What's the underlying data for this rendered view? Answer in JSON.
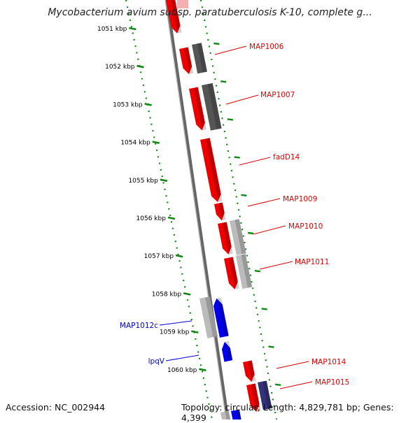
{
  "title": "Mycobacterium avium subsp. paratuberculosis K-10, complete g...",
  "footer": {
    "accession": "Accession: NC_002944",
    "summary": "Topology: circular; Length: 4,829,781 bp; Genes: 4,399"
  },
  "scale_unit": "kbp",
  "ticks": [
    {
      "label": "1051 kbp",
      "kbp": 1051
    },
    {
      "label": "1052 kbp",
      "kbp": 1052
    },
    {
      "label": "1053 kbp",
      "kbp": 1053
    },
    {
      "label": "1054 kbp",
      "kbp": 1054
    },
    {
      "label": "1055 kbp",
      "kbp": 1055
    },
    {
      "label": "1056 kbp",
      "kbp": 1056
    },
    {
      "label": "1057 kbp",
      "kbp": 1057
    },
    {
      "label": "1058 kbp",
      "kbp": 1058
    },
    {
      "label": "1059 kbp",
      "kbp": 1059
    },
    {
      "label": "1060 kbp",
      "kbp": 1060
    }
  ],
  "gene_labels": [
    {
      "text": "MAP1006",
      "strand": "forward",
      "color": "#dd0000"
    },
    {
      "text": "MAP1007",
      "strand": "forward",
      "color": "#dd0000"
    },
    {
      "text": "fadD14",
      "strand": "forward",
      "color": "#dd0000"
    },
    {
      "text": "MAP1009",
      "strand": "forward",
      "color": "#dd0000"
    },
    {
      "text": "MAP1010",
      "strand": "forward",
      "color": "#dd0000"
    },
    {
      "text": "MAP1011",
      "strand": "forward",
      "color": "#dd0000"
    },
    {
      "text": "MAP1012c",
      "strand": "reverse",
      "color": "#0000cc"
    },
    {
      "text": "lpqV",
      "strand": "reverse",
      "color": "#0000cc"
    },
    {
      "text": "MAP1014",
      "strand": "forward",
      "color": "#dd0000"
    },
    {
      "text": "MAP1015",
      "strand": "forward",
      "color": "#dd0000"
    }
  ],
  "colors": {
    "forward_gene": "#ee0000",
    "reverse_gene": "#0000ee",
    "cds_dark": "#555555",
    "cds_light": "#bbbbbb",
    "cds_purple": "#333377",
    "backbone": "#888888",
    "tick": "#118811"
  }
}
